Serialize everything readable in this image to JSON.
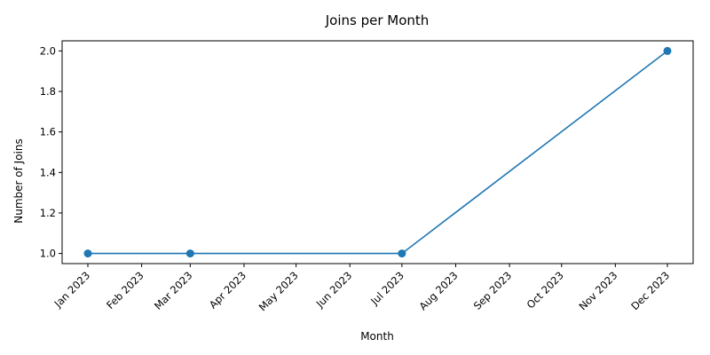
{
  "chart_data": {
    "type": "line",
    "title": "Joins per Month",
    "xlabel": "Month",
    "ylabel": "Number of Joins",
    "x_ticks": [
      "Jan 2023",
      "Feb 2023",
      "Mar 2023",
      "Apr 2023",
      "May 2023",
      "Jun 2023",
      "Jul 2023",
      "Aug 2023",
      "Sep 2023",
      "Oct 2023",
      "Nov 2023",
      "Dec 2023"
    ],
    "y_ticks": [
      "1.0",
      "1.2",
      "1.4",
      "1.6",
      "1.8",
      "2.0"
    ],
    "ylim": [
      0.95,
      2.05
    ],
    "series": [
      {
        "points": [
          {
            "x": "2023-01-01",
            "y": 1
          },
          {
            "x": "2023-03-01",
            "y": 1
          },
          {
            "x": "2023-07-01",
            "y": 1
          },
          {
            "x": "2023-12-01",
            "y": 2
          }
        ],
        "color": "#1f77b4",
        "marker": "circle"
      }
    ],
    "grid": false,
    "legend": "none"
  }
}
